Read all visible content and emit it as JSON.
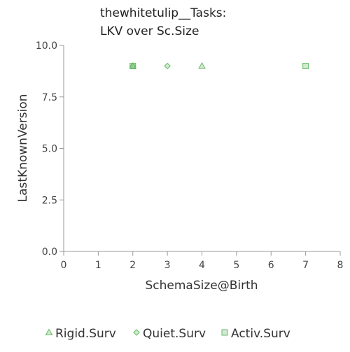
{
  "chart_data": {
    "type": "scatter",
    "title_lines": [
      "thewhitetulip__Tasks:",
      "LKV over Sc.Size"
    ],
    "xlabel": "SchemaSize@Birth",
    "ylabel": "LastKnownVersion",
    "xlim": [
      0,
      8
    ],
    "ylim": [
      0,
      10
    ],
    "x_ticks": [
      "0",
      "1",
      "2",
      "3",
      "4",
      "5",
      "6",
      "7",
      "8"
    ],
    "y_ticks": [
      "0.0",
      "2.5",
      "5.0",
      "7.5",
      "10.0"
    ],
    "grid": false,
    "legend_position": "bottom",
    "series": [
      {
        "name": "Rigid.Surv",
        "marker": "triangle",
        "color": "#66bb66",
        "points": [
          {
            "x": 2,
            "y": 9
          },
          {
            "x": 4,
            "y": 9
          }
        ]
      },
      {
        "name": "Quiet.Surv",
        "marker": "diamond",
        "color": "#66bb66",
        "points": [
          {
            "x": 2,
            "y": 9
          },
          {
            "x": 3,
            "y": 9
          }
        ]
      },
      {
        "name": "Activ.Surv",
        "marker": "square",
        "color": "#66bb66",
        "points": [
          {
            "x": 2,
            "y": 9
          },
          {
            "x": 7,
            "y": 9
          }
        ]
      }
    ]
  }
}
